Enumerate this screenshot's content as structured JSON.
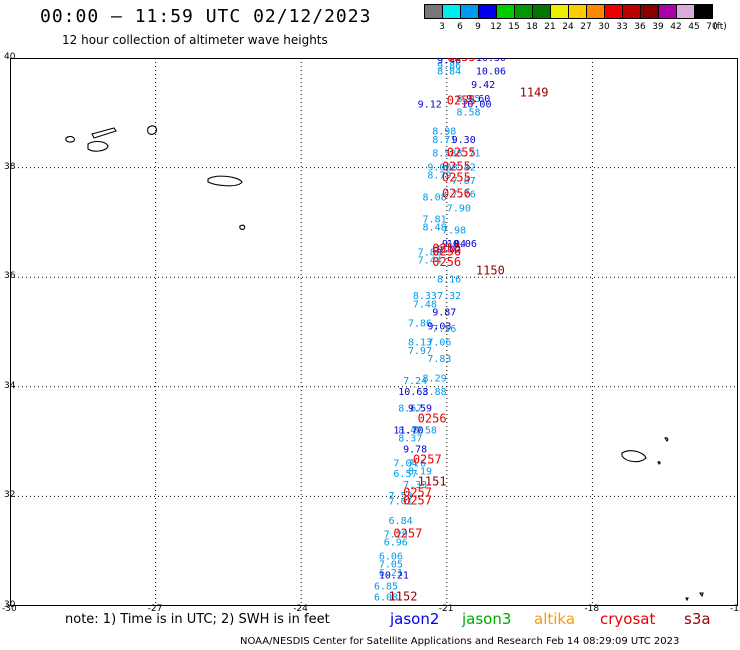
{
  "header": {
    "title": "00:00 — 11:59 UTC 02/12/2023",
    "subtitle": "12 hour collection of altimeter wave heights"
  },
  "colorbar": {
    "unit": "(ft)",
    "bins": [
      {
        "color": "#777777",
        "label": "3"
      },
      {
        "color": "#00eeee",
        "label": "6"
      },
      {
        "color": "#0099ee",
        "label": "9"
      },
      {
        "color": "#0000ee",
        "label": "12"
      },
      {
        "color": "#00cc00",
        "label": "15"
      },
      {
        "color": "#009900",
        "label": "18"
      },
      {
        "color": "#007700",
        "label": "21"
      },
      {
        "color": "#eeee00",
        "label": "24"
      },
      {
        "color": "#ffcc00",
        "label": "27"
      },
      {
        "color": "#ff8800",
        "label": "30"
      },
      {
        "color": "#ee0000",
        "label": "33"
      },
      {
        "color": "#bb0000",
        "label": "36"
      },
      {
        "color": "#880000",
        "label": "39"
      },
      {
        "color": "#aa00aa",
        "label": "42"
      },
      {
        "color": "#ddaadd",
        "label": "45"
      },
      {
        "color": "#000000",
        "label": "70"
      }
    ]
  },
  "map": {
    "lon_range": [
      -30,
      -15
    ],
    "lat_range": [
      30,
      40
    ],
    "lon_ticks": [
      "-30",
      "-27",
      "-24",
      "-21",
      "-18",
      "-15"
    ],
    "lat_ticks": [
      "40",
      "38",
      "36",
      "34",
      "32",
      "30"
    ],
    "grid": "dotted"
  },
  "chart_data": {
    "type": "scatter",
    "xlabel": "",
    "ylabel": "",
    "series": [
      {
        "name": "cryosat",
        "color": "#0099ee",
        "points": [
          {
            "lon": -21.2,
            "lat": 39.8,
            "label": "9.86"
          },
          {
            "lon": -21.2,
            "lat": 39.7,
            "label": "8.84"
          },
          {
            "lon": -21.3,
            "lat": 38.6,
            "label": "8.98"
          },
          {
            "lon": -21.3,
            "lat": 38.45,
            "label": "8.71"
          },
          {
            "lon": -21.3,
            "lat": 38.2,
            "label": "8.58"
          },
          {
            "lon": -21.4,
            "lat": 37.95,
            "label": "9.00"
          },
          {
            "lon": -21.4,
            "lat": 37.8,
            "label": "8.79"
          },
          {
            "lon": -21.5,
            "lat": 37.4,
            "label": "8.08"
          },
          {
            "lon": -21.5,
            "lat": 37.0,
            "label": "7.81"
          },
          {
            "lon": -21.5,
            "lat": 36.85,
            "label": "8.48"
          },
          {
            "lon": -21.6,
            "lat": 36.4,
            "label": "7.89"
          },
          {
            "lon": -21.6,
            "lat": 36.25,
            "label": "7.44"
          },
          {
            "lon": -21.7,
            "lat": 35.6,
            "label": "8.33"
          },
          {
            "lon": -21.7,
            "lat": 35.45,
            "label": "7.48"
          },
          {
            "lon": -21.8,
            "lat": 35.1,
            "label": "7.86"
          },
          {
            "lon": -21.8,
            "lat": 34.75,
            "label": "8.13"
          },
          {
            "lon": -21.8,
            "lat": 34.6,
            "label": "7.97"
          },
          {
            "lon": -21.9,
            "lat": 34.05,
            "label": "7.24"
          },
          {
            "lon": -22.0,
            "lat": 33.55,
            "label": "8.67"
          },
          {
            "lon": -22.0,
            "lat": 33.15,
            "label": "8.47"
          },
          {
            "lon": -22.0,
            "lat": 33.0,
            "label": "8.37"
          },
          {
            "lon": -22.1,
            "lat": 32.55,
            "label": "7.04"
          },
          {
            "lon": -22.1,
            "lat": 32.35,
            "label": "6.57"
          },
          {
            "lon": -22.2,
            "lat": 31.95,
            "label": "7.53"
          },
          {
            "lon": -22.2,
            "lat": 31.85,
            "label": "7.01"
          },
          {
            "lon": -22.2,
            "lat": 31.5,
            "label": "6.84"
          },
          {
            "lon": -22.3,
            "lat": 31.25,
            "label": "7.29"
          },
          {
            "lon": -22.3,
            "lat": 31.1,
            "label": "6.96"
          },
          {
            "lon": -22.4,
            "lat": 30.85,
            "label": "6.06"
          },
          {
            "lon": -22.4,
            "lat": 30.7,
            "label": "7.05"
          },
          {
            "lon": -22.4,
            "lat": 30.55,
            "label": "6.21"
          },
          {
            "lon": -22.5,
            "lat": 30.3,
            "label": "6.85"
          },
          {
            "lon": -22.5,
            "lat": 30.1,
            "label": "6.08"
          }
        ]
      },
      {
        "name": "jason3",
        "color": "#0099ee",
        "points": [
          {
            "lon": -20.8,
            "lat": 39.2,
            "label": "8.95"
          },
          {
            "lon": -20.8,
            "lat": 38.95,
            "label": "8.58"
          },
          {
            "lon": -20.8,
            "lat": 38.2,
            "label": "8.71"
          },
          {
            "lon": -20.9,
            "lat": 37.95,
            "label": "8.42"
          },
          {
            "lon": -20.9,
            "lat": 37.7,
            "label": "7.87"
          },
          {
            "lon": -20.9,
            "lat": 37.45,
            "label": "7.76"
          },
          {
            "lon": -21.0,
            "lat": 37.2,
            "label": "7.90"
          },
          {
            "lon": -21.1,
            "lat": 36.8,
            "label": "7.98"
          },
          {
            "lon": -21.2,
            "lat": 35.9,
            "label": "8.16"
          },
          {
            "lon": -21.2,
            "lat": 35.6,
            "label": "7.32"
          },
          {
            "lon": -21.3,
            "lat": 35.0,
            "label": "7.56"
          },
          {
            "lon": -21.4,
            "lat": 34.75,
            "label": "7.06"
          },
          {
            "lon": -21.4,
            "lat": 34.45,
            "label": "7.83"
          },
          {
            "lon": -21.5,
            "lat": 34.1,
            "label": "8.29"
          },
          {
            "lon": -21.5,
            "lat": 33.85,
            "label": "8.88"
          },
          {
            "lon": -21.7,
            "lat": 33.15,
            "label": "8.58"
          },
          {
            "lon": -21.8,
            "lat": 32.55,
            "label": "7.6"
          },
          {
            "lon": -21.8,
            "lat": 32.4,
            "label": "8.19"
          },
          {
            "lon": -21.9,
            "lat": 32.15,
            "label": "7.33"
          }
        ]
      },
      {
        "name": "jason2",
        "color": "#0000cc",
        "points": [
          {
            "lon": -21.2,
            "lat": 39.9,
            "label": "9.46"
          },
          {
            "lon": -20.4,
            "lat": 39.95,
            "label": "10.30"
          },
          {
            "lon": -20.4,
            "lat": 39.7,
            "label": "10.06"
          },
          {
            "lon": -20.5,
            "lat": 39.45,
            "label": "9.42"
          },
          {
            "lon": -20.6,
            "lat": 39.2,
            "label": "9.60"
          },
          {
            "lon": -20.7,
            "lat": 39.1,
            "label": "10.00"
          },
          {
            "lon": -21.6,
            "lat": 39.1,
            "label": "9.12"
          },
          {
            "lon": -20.9,
            "lat": 38.45,
            "label": "9.30"
          },
          {
            "lon": -21.0,
            "lat": 36.55,
            "label": "10.06"
          },
          {
            "lon": -21.1,
            "lat": 36.55,
            "label": "9.04"
          },
          {
            "lon": -21.2,
            "lat": 36.45,
            "label": "9.02"
          },
          {
            "lon": -21.3,
            "lat": 35.3,
            "label": "9.87"
          },
          {
            "lon": -21.4,
            "lat": 35.05,
            "label": "9.03"
          },
          {
            "lon": -22.0,
            "lat": 33.85,
            "label": "10.63"
          },
          {
            "lon": -21.8,
            "lat": 33.55,
            "label": "9.59"
          },
          {
            "lon": -22.1,
            "lat": 33.15,
            "label": "11.70"
          },
          {
            "lon": -21.9,
            "lat": 32.8,
            "label": "9.78"
          },
          {
            "lon": -22.4,
            "lat": 30.5,
            "label": "10.21"
          }
        ]
      },
      {
        "name": "s3a",
        "color": "#990000",
        "points": [
          {
            "lon": -19.5,
            "lat": 39.3,
            "label": "1149"
          },
          {
            "lon": -20.4,
            "lat": 36.05,
            "label": "1150"
          },
          {
            "lon": -21.6,
            "lat": 32.2,
            "label": "1151"
          },
          {
            "lon": -22.2,
            "lat": 30.1,
            "label": "1152"
          }
        ]
      },
      {
        "name": "cryosat track id",
        "color": "#ee0000",
        "points": [
          {
            "lon": -21.0,
            "lat": 39.95,
            "label": "0255"
          },
          {
            "lon": -21.0,
            "lat": 39.15,
            "label": "0255"
          },
          {
            "lon": -21.0,
            "lat": 38.2,
            "label": "0255"
          },
          {
            "lon": -21.1,
            "lat": 37.95,
            "label": "0255"
          },
          {
            "lon": -21.1,
            "lat": 37.75,
            "label": "0255"
          },
          {
            "lon": -21.1,
            "lat": 37.45,
            "label": "0256"
          },
          {
            "lon": -21.3,
            "lat": 36.45,
            "label": "0256"
          },
          {
            "lon": -21.3,
            "lat": 36.4,
            "label": "0256"
          },
          {
            "lon": -21.3,
            "lat": 36.2,
            "label": "0256"
          },
          {
            "lon": -21.6,
            "lat": 33.35,
            "label": "0256"
          },
          {
            "lon": -21.7,
            "lat": 32.6,
            "label": "0257"
          },
          {
            "lon": -21.9,
            "lat": 32.0,
            "label": "0257"
          },
          {
            "lon": -21.9,
            "lat": 31.85,
            "label": "0257"
          },
          {
            "lon": -22.1,
            "lat": 31.25,
            "label": "0257"
          }
        ]
      }
    ]
  },
  "legend": {
    "note": "note: 1) Time is in UTC; 2) SWH is in feet",
    "sats": [
      {
        "name": "jason2",
        "color": "#0000ee"
      },
      {
        "name": "jason3",
        "color": "#00aa00"
      },
      {
        "name": "altika",
        "color": "#ff9900"
      },
      {
        "name": "cryosat",
        "color": "#ee0000"
      },
      {
        "name": "s3a",
        "color": "#990000"
      }
    ]
  },
  "footer": {
    "credit": "NOAA/NESDIS Center for Satellite Applications and Research    Feb 14 08:29:09 UTC 2023"
  }
}
